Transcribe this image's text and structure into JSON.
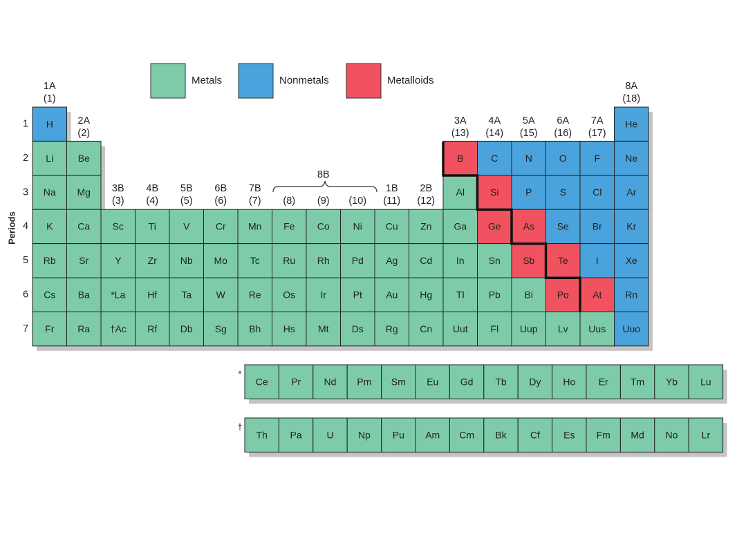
{
  "legend": {
    "items": [
      {
        "label": "Metals",
        "color": "#7ecba9"
      },
      {
        "label": "Nonmetals",
        "color": "#4aa3dc"
      },
      {
        "label": "Metalloids",
        "color": "#f0525f"
      }
    ]
  },
  "periods_label": "Periods",
  "periods": [
    "1",
    "2",
    "3",
    "4",
    "5",
    "6",
    "7"
  ],
  "groups": [
    {
      "name": "1A",
      "number": "(1)"
    },
    {
      "name": "2A",
      "number": "(2)"
    },
    {
      "name": "3B",
      "number": "(3)"
    },
    {
      "name": "4B",
      "number": "(4)"
    },
    {
      "name": "5B",
      "number": "(5)"
    },
    {
      "name": "6B",
      "number": "(6)"
    },
    {
      "name": "7B",
      "number": "(7)"
    },
    {
      "number": "(8)"
    },
    {
      "number": "(9)"
    },
    {
      "number": "(10)"
    },
    {
      "name": "1B",
      "number": "(11)"
    },
    {
      "name": "2B",
      "number": "(12)"
    },
    {
      "name": "3A",
      "number": "(13)"
    },
    {
      "name": "4A",
      "number": "(14)"
    },
    {
      "name": "5A",
      "number": "(15)"
    },
    {
      "name": "6A",
      "number": "(16)"
    },
    {
      "name": "7A",
      "number": "(17)"
    },
    {
      "name": "8A",
      "number": "(18)"
    }
  ],
  "group_8b": "8B",
  "rows": [
    [
      {
        "symbol": "H",
        "type": 1
      },
      null,
      null,
      null,
      null,
      null,
      null,
      null,
      null,
      null,
      null,
      null,
      null,
      null,
      null,
      null,
      null,
      {
        "symbol": "He",
        "type": 1
      }
    ],
    [
      {
        "symbol": "Li",
        "type": 0
      },
      {
        "symbol": "Be",
        "type": 0
      },
      null,
      null,
      null,
      null,
      null,
      null,
      null,
      null,
      null,
      null,
      {
        "symbol": "B",
        "type": 2
      },
      {
        "symbol": "C",
        "type": 1
      },
      {
        "symbol": "N",
        "type": 1
      },
      {
        "symbol": "O",
        "type": 1
      },
      {
        "symbol": "F",
        "type": 1
      },
      {
        "symbol": "Ne",
        "type": 1
      }
    ],
    [
      {
        "symbol": "Na",
        "type": 0
      },
      {
        "symbol": "Mg",
        "type": 0
      },
      null,
      null,
      null,
      null,
      null,
      null,
      null,
      null,
      null,
      null,
      {
        "symbol": "Al",
        "type": 0
      },
      {
        "symbol": "Si",
        "type": 2
      },
      {
        "symbol": "P",
        "type": 1
      },
      {
        "symbol": "S",
        "type": 1
      },
      {
        "symbol": "Cl",
        "type": 1
      },
      {
        "symbol": "Ar",
        "type": 1
      }
    ],
    [
      {
        "symbol": "K",
        "type": 0
      },
      {
        "symbol": "Ca",
        "type": 0
      },
      {
        "symbol": "Sc",
        "type": 0
      },
      {
        "symbol": "Ti",
        "type": 0
      },
      {
        "symbol": "V",
        "type": 0
      },
      {
        "symbol": "Cr",
        "type": 0
      },
      {
        "symbol": "Mn",
        "type": 0
      },
      {
        "symbol": "Fe",
        "type": 0
      },
      {
        "symbol": "Co",
        "type": 0
      },
      {
        "symbol": "Ni",
        "type": 0
      },
      {
        "symbol": "Cu",
        "type": 0
      },
      {
        "symbol": "Zn",
        "type": 0
      },
      {
        "symbol": "Ga",
        "type": 0
      },
      {
        "symbol": "Ge",
        "type": 2
      },
      {
        "symbol": "As",
        "type": 2
      },
      {
        "symbol": "Se",
        "type": 1
      },
      {
        "symbol": "Br",
        "type": 1
      },
      {
        "symbol": "Kr",
        "type": 1
      }
    ],
    [
      {
        "symbol": "Rb",
        "type": 0
      },
      {
        "symbol": "Sr",
        "type": 0
      },
      {
        "symbol": "Y",
        "type": 0
      },
      {
        "symbol": "Zr",
        "type": 0
      },
      {
        "symbol": "Nb",
        "type": 0
      },
      {
        "symbol": "Mo",
        "type": 0
      },
      {
        "symbol": "Tc",
        "type": 0
      },
      {
        "symbol": "Ru",
        "type": 0
      },
      {
        "symbol": "Rh",
        "type": 0
      },
      {
        "symbol": "Pd",
        "type": 0
      },
      {
        "symbol": "Ag",
        "type": 0
      },
      {
        "symbol": "Cd",
        "type": 0
      },
      {
        "symbol": "In",
        "type": 0
      },
      {
        "symbol": "Sn",
        "type": 0
      },
      {
        "symbol": "Sb",
        "type": 2
      },
      {
        "symbol": "Te",
        "type": 2
      },
      {
        "symbol": "I",
        "type": 1
      },
      {
        "symbol": "Xe",
        "type": 1
      }
    ],
    [
      {
        "symbol": "Cs",
        "type": 0
      },
      {
        "symbol": "Ba",
        "type": 0
      },
      {
        "symbol": "*La",
        "type": 0
      },
      {
        "symbol": "Hf",
        "type": 0
      },
      {
        "symbol": "Ta",
        "type": 0
      },
      {
        "symbol": "W",
        "type": 0
      },
      {
        "symbol": "Re",
        "type": 0
      },
      {
        "symbol": "Os",
        "type": 0
      },
      {
        "symbol": "Ir",
        "type": 0
      },
      {
        "symbol": "Pt",
        "type": 0
      },
      {
        "symbol": "Au",
        "type": 0
      },
      {
        "symbol": "Hg",
        "type": 0
      },
      {
        "symbol": "Tl",
        "type": 0
      },
      {
        "symbol": "Pb",
        "type": 0
      },
      {
        "symbol": "Bi",
        "type": 0
      },
      {
        "symbol": "Po",
        "type": 2
      },
      {
        "symbol": "At",
        "type": 2
      },
      {
        "symbol": "Rn",
        "type": 1
      }
    ],
    [
      {
        "symbol": "Fr",
        "type": 0
      },
      {
        "symbol": "Ra",
        "type": 0
      },
      {
        "symbol": "†Ac",
        "type": 0
      },
      {
        "symbol": "Rf",
        "type": 0
      },
      {
        "symbol": "Db",
        "type": 0
      },
      {
        "symbol": "Sg",
        "type": 0
      },
      {
        "symbol": "Bh",
        "type": 0
      },
      {
        "symbol": "Hs",
        "type": 0
      },
      {
        "symbol": "Mt",
        "type": 0
      },
      {
        "symbol": "Ds",
        "type": 0
      },
      {
        "symbol": "Rg",
        "type": 0
      },
      {
        "symbol": "Cn",
        "type": 0
      },
      {
        "symbol": "Uut",
        "type": 0
      },
      {
        "symbol": "Fl",
        "type": 0
      },
      {
        "symbol": "Uup",
        "type": 0
      },
      {
        "symbol": "Lv",
        "type": 0
      },
      {
        "symbol": "Uus",
        "type": 0
      },
      {
        "symbol": "Uuo",
        "type": 1
      }
    ]
  ],
  "series": [
    {
      "marker": "*",
      "type": 0,
      "symbols": [
        "Ce",
        "Pr",
        "Nd",
        "Pm",
        "Sm",
        "Eu",
        "Gd",
        "Tb",
        "Dy",
        "Ho",
        "Er",
        "Tm",
        "Yb",
        "Lu"
      ]
    },
    {
      "marker": "†",
      "type": 0,
      "symbols": [
        "Th",
        "Pa",
        "U",
        "Np",
        "Pu",
        "Am",
        "Cm",
        "Bk",
        "Cf",
        "Es",
        "Fm",
        "Md",
        "No",
        "Lr"
      ]
    }
  ]
}
